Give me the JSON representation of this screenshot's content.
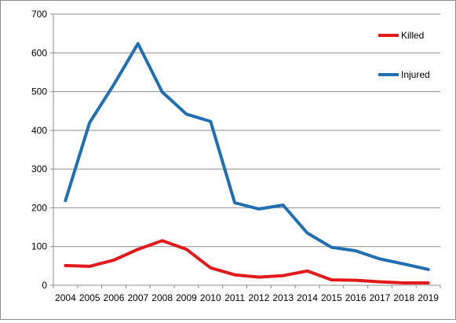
{
  "chart_data": {
    "type": "line",
    "title": "",
    "xlabel": "",
    "ylabel": "",
    "x": [
      "2004",
      "2005",
      "2006",
      "2007",
      "2008",
      "2009",
      "2010",
      "2011",
      "2012",
      "2013",
      "2014",
      "2015",
      "2016",
      "2017",
      "2018",
      "2019"
    ],
    "ylim": [
      0,
      700
    ],
    "yticks": [
      0,
      100,
      200,
      300,
      400,
      500,
      600,
      700
    ],
    "grid": true,
    "legend_position": "top-right",
    "series": [
      {
        "name": "Killed",
        "color": "#e31a1c",
        "values": [
          51,
          49,
          65,
          93,
          115,
          93,
          45,
          27,
          21,
          25,
          37,
          14,
          13,
          9,
          6,
          6
        ]
      },
      {
        "name": "Injured",
        "color": "#1f6fb2",
        "values": [
          219,
          420,
          518,
          624,
          499,
          442,
          423,
          213,
          197,
          207,
          135,
          98,
          89,
          68,
          55,
          41
        ]
      }
    ]
  }
}
